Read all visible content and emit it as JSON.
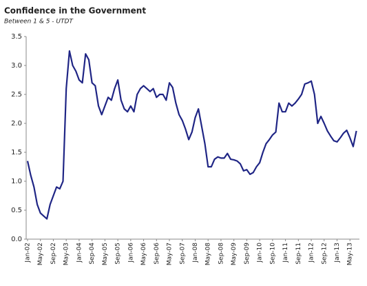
{
  "chart_data": {
    "type": "line",
    "title": "Confidence in the Government",
    "subtitle": "Between 1 & 5 - UTDT",
    "categories": [
      "Jan-02",
      null,
      null,
      null,
      "May-02",
      null,
      null,
      null,
      "Sep-02",
      null,
      null,
      null,
      "May-03",
      null,
      null,
      null,
      "Jan-04",
      null,
      null,
      null,
      "Sep-04",
      null,
      null,
      null,
      "May-05",
      null,
      null,
      null,
      "Sep-05",
      null,
      null,
      null,
      "Jan-06",
      null,
      null,
      null,
      "May-06",
      null,
      null,
      null,
      "Sep-06",
      null,
      null,
      null,
      "May-07",
      null,
      null,
      null,
      "Sep-07",
      null,
      null,
      null,
      "Jan-08",
      null,
      null,
      null,
      "May-08",
      null,
      null,
      null,
      "Sep-08",
      null,
      null,
      null,
      "May-09",
      null,
      null,
      null,
      "Sep-09",
      null,
      null,
      null,
      "Jan-10",
      null,
      null,
      null,
      "Sep-10",
      null,
      null,
      null,
      "Jan-11",
      null,
      null,
      null,
      "Sep-11",
      null,
      null,
      null,
      "Jan-12",
      null,
      null,
      null,
      "Sep-12",
      null,
      null,
      null,
      "Jan-13",
      null,
      null,
      null,
      "May-13",
      null,
      null
    ],
    "values": [
      1.35,
      1.1,
      0.9,
      0.6,
      0.45,
      0.4,
      0.35,
      0.6,
      0.75,
      0.9,
      0.87,
      1.0,
      2.6,
      3.25,
      3.0,
      2.9,
      2.75,
      2.7,
      3.2,
      3.1,
      2.7,
      2.65,
      2.3,
      2.15,
      2.3,
      2.45,
      2.4,
      2.6,
      2.75,
      2.4,
      2.25,
      2.2,
      2.3,
      2.2,
      2.5,
      2.6,
      2.65,
      2.6,
      2.55,
      2.6,
      2.45,
      2.5,
      2.5,
      2.4,
      2.7,
      2.62,
      2.35,
      2.15,
      2.05,
      1.9,
      1.72,
      1.85,
      2.1,
      2.25,
      1.95,
      1.65,
      1.25,
      1.25,
      1.38,
      1.42,
      1.4,
      1.4,
      1.48,
      1.38,
      1.37,
      1.35,
      1.3,
      1.18,
      1.2,
      1.12,
      1.15,
      1.25,
      1.32,
      1.5,
      1.65,
      1.72,
      1.8,
      1.85,
      2.35,
      2.2,
      2.2,
      2.35,
      2.3,
      2.35,
      2.42,
      2.5,
      2.68,
      2.7,
      2.73,
      2.5,
      2.0,
      2.12,
      2.0,
      1.87,
      1.78,
      1.7,
      1.68,
      1.75,
      1.83,
      1.88,
      1.75,
      1.6,
      1.87
    ],
    "color": "#1f2585",
    "ylim": [
      0,
      3.5
    ],
    "yticks": [
      {
        "value": 0,
        "label": "0.0"
      },
      0.5,
      {
        "value": 1,
        "label": "1.0"
      },
      1.5,
      {
        "value": 2,
        "label": "2.0"
      },
      2.5,
      {
        "value": 3,
        "label": "3.0"
      },
      3.5
    ],
    "grid": false
  }
}
